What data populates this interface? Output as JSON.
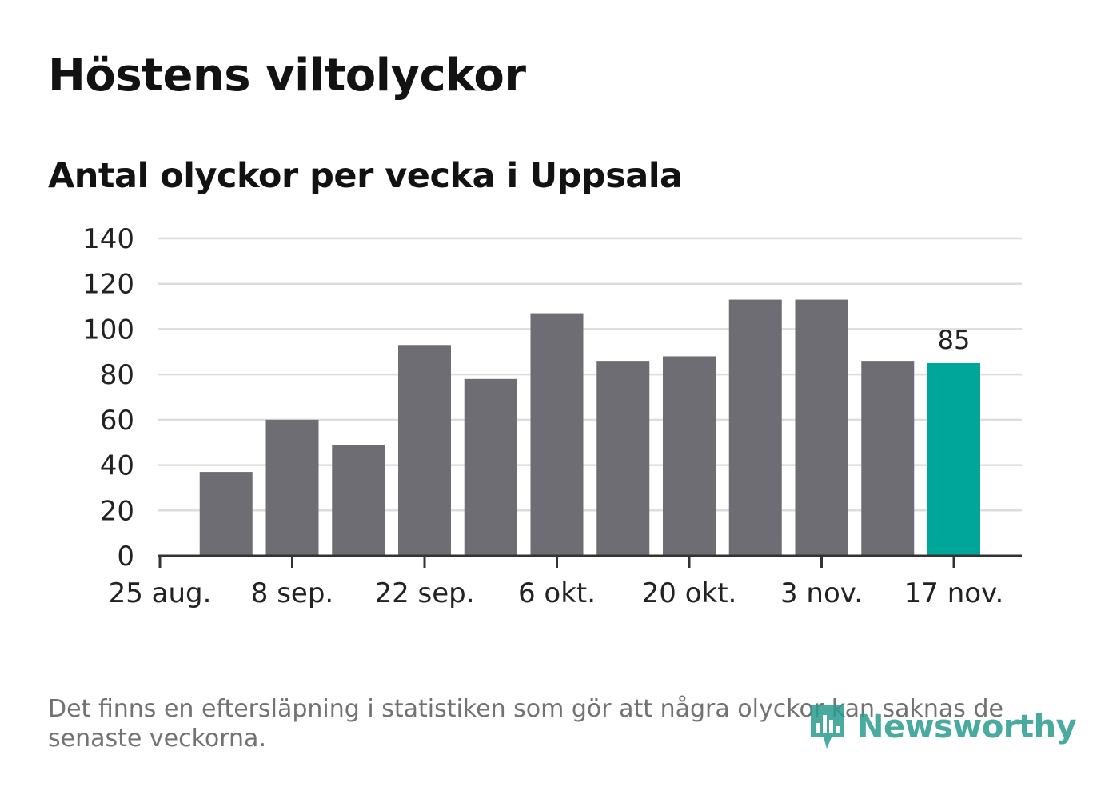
{
  "title": "Höstens viltolyckor",
  "subtitle": "Antal olyckor per vecka i Uppsala",
  "footnote": "Det finns en eftersläpning i statistiken som gör att några olyckor kan saknas de senaste veckorna.",
  "logo": {
    "text": "Newsworthy",
    "icon": "newsworthy-logo-icon",
    "color": "#2a9d8f"
  },
  "colors": {
    "bar": "#6e6d73",
    "highlight": "#00a69a",
    "grid": "#dddddd",
    "axis": "#333333"
  },
  "chart_data": {
    "type": "bar",
    "title": "Höstens viltolyckor",
    "subtitle": "Antal olyckor per vecka i Uppsala",
    "xlabel": "",
    "ylabel": "",
    "ylim": [
      0,
      140
    ],
    "yticks": [
      0,
      20,
      40,
      60,
      80,
      100,
      120,
      140
    ],
    "values": [
      37,
      60,
      49,
      93,
      78,
      107,
      86,
      88,
      113,
      113,
      86,
      85
    ],
    "xtick_labels": [
      "25 aug.",
      "8 sep.",
      "22 sep.",
      "6 okt.",
      "20 okt.",
      "3 nov.",
      "17 nov."
    ],
    "highlight_index": 11,
    "data_labels": [
      {
        "index": 11,
        "text": "85"
      }
    ],
    "grid": true
  }
}
